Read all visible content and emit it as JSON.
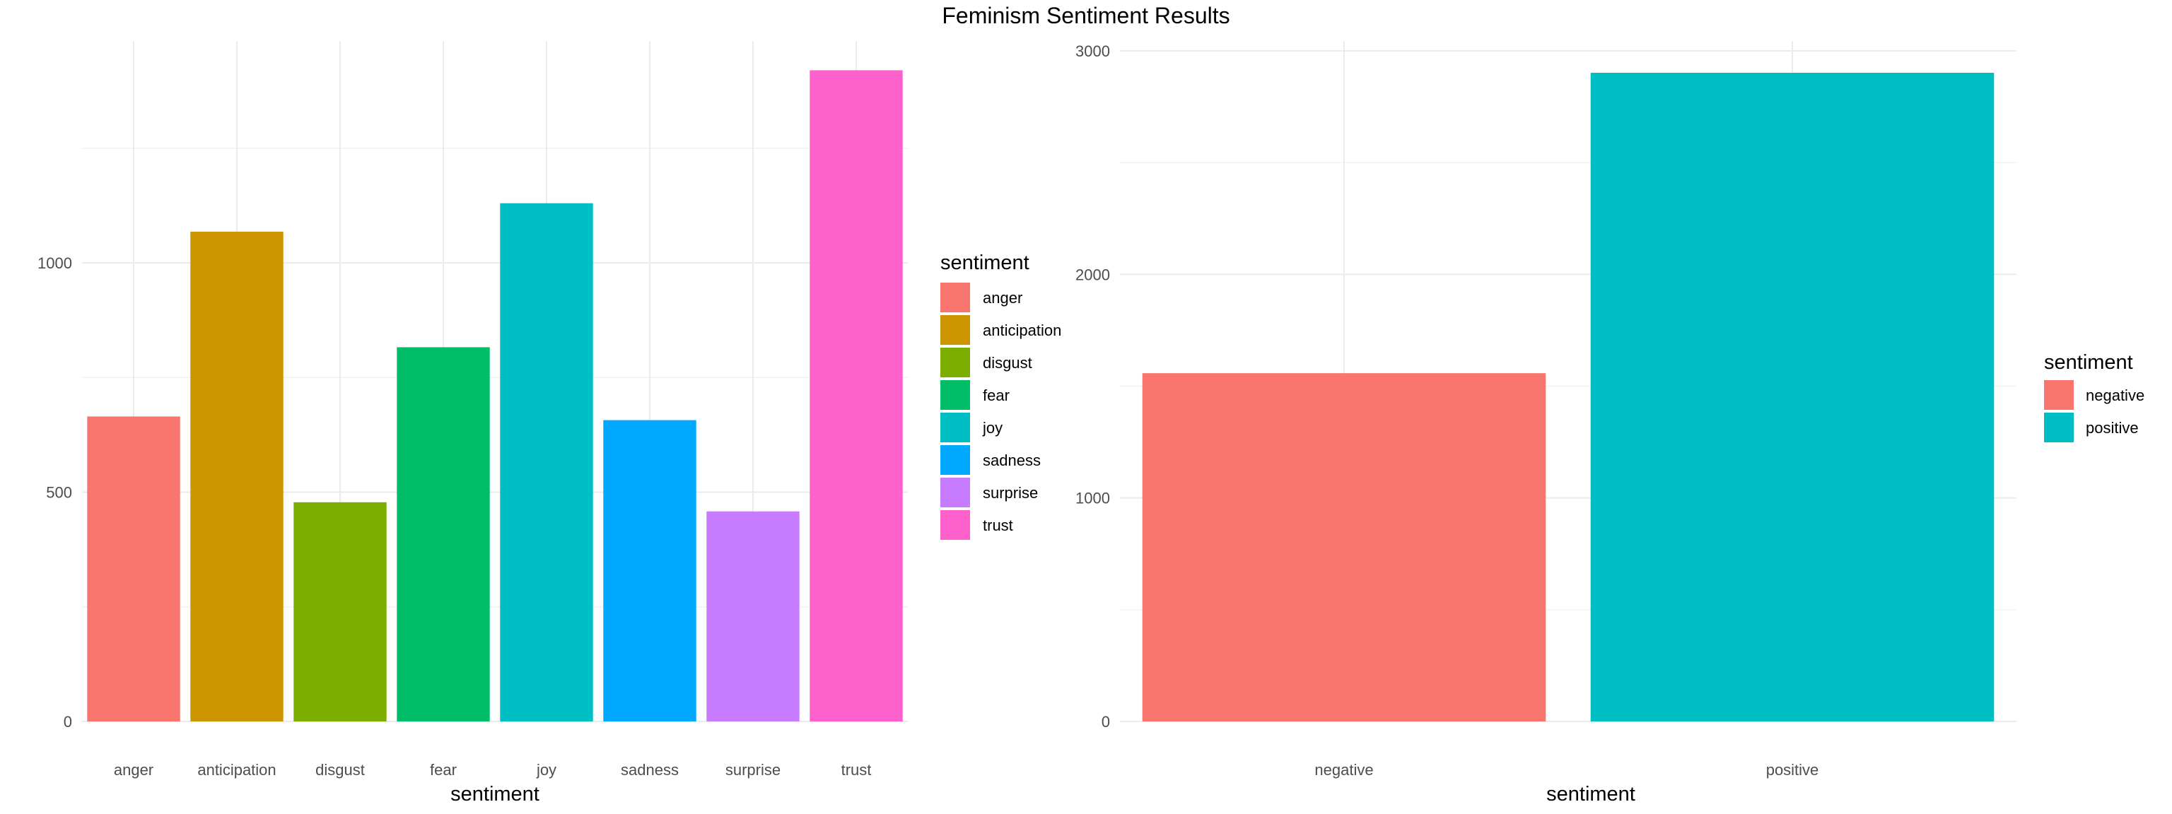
{
  "title": "Feminism Sentiment Results",
  "chart_data": [
    {
      "type": "bar",
      "categories": [
        "anger",
        "anticipation",
        "disgust",
        "fear",
        "joy",
        "sadness",
        "surprise",
        "trust"
      ],
      "values": [
        665,
        1068,
        478,
        816,
        1130,
        657,
        458,
        1420
      ],
      "colors": [
        "#F8766D",
        "#CD9600",
        "#7CAE00",
        "#00BE67",
        "#00BFC4",
        "#00A9FF",
        "#C77CFF",
        "#FF61CC"
      ],
      "xlabel": "sentiment",
      "ylabel": "",
      "ylim": [
        0,
        1420
      ],
      "yticks": [
        0,
        500,
        1000
      ],
      "ytick_labels": [
        "0",
        "500",
        "1000"
      ],
      "grid": true,
      "legend_title": "sentiment",
      "legend_position": "right"
    },
    {
      "type": "bar",
      "categories": [
        "negative",
        "positive"
      ],
      "values": [
        1558,
        2902
      ],
      "colors": [
        "#F8766D",
        "#00BFC4"
      ],
      "xlabel": "sentiment",
      "ylabel": "",
      "ylim": [
        0,
        3000
      ],
      "yticks": [
        0,
        1000,
        2000,
        3000
      ],
      "ytick_labels": [
        "0",
        "1000",
        "2000",
        "3000"
      ],
      "grid": true,
      "legend_title": "sentiment",
      "legend_position": "right"
    }
  ]
}
